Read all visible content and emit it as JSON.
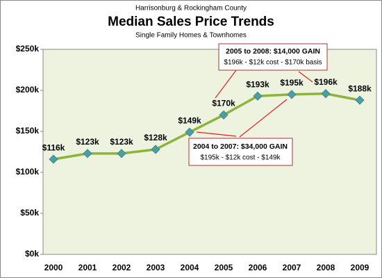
{
  "chart_data": {
    "type": "line",
    "supertitle": "Harrisonburg & Rockingham County",
    "title": "Median Sales Price Trends",
    "subtitle": "Single Family Homes & Townhomes",
    "categories": [
      "2000",
      "2001",
      "2002",
      "2003",
      "2004",
      "2005",
      "2006",
      "2007",
      "2008",
      "2009"
    ],
    "series": [
      {
        "name": "Median Sales Price",
        "color": "#8cb33a",
        "marker_color": "#4a9fa5",
        "values": [
          116000,
          123000,
          123000,
          128000,
          149000,
          170000,
          193000,
          195000,
          196000,
          188000
        ],
        "value_labels": [
          "$116k",
          "$123k",
          "$123k",
          "$128k",
          "$149k",
          "$170k",
          "$193k",
          "$195k",
          "$196k",
          "$188k"
        ]
      }
    ],
    "ylim": [
      0,
      250000
    ],
    "yticks": [
      {
        "value": 0,
        "label": "$0k"
      },
      {
        "value": 50000,
        "label": "$50k"
      },
      {
        "value": 100000,
        "label": "$100k"
      },
      {
        "value": 150000,
        "label": "$150k"
      },
      {
        "value": 200000,
        "label": "$200k"
      },
      {
        "value": 250000,
        "label": "$250k"
      }
    ],
    "grid": false,
    "annotations": [
      {
        "lines": [
          "2005 to 2008:  $14,000 GAIN",
          "$196k - $12k cost - $170k basis"
        ]
      },
      {
        "lines": [
          "2004 to 2007:  $34,000 GAIN",
          "$195k - $12k cost - $149k"
        ]
      }
    ]
  }
}
